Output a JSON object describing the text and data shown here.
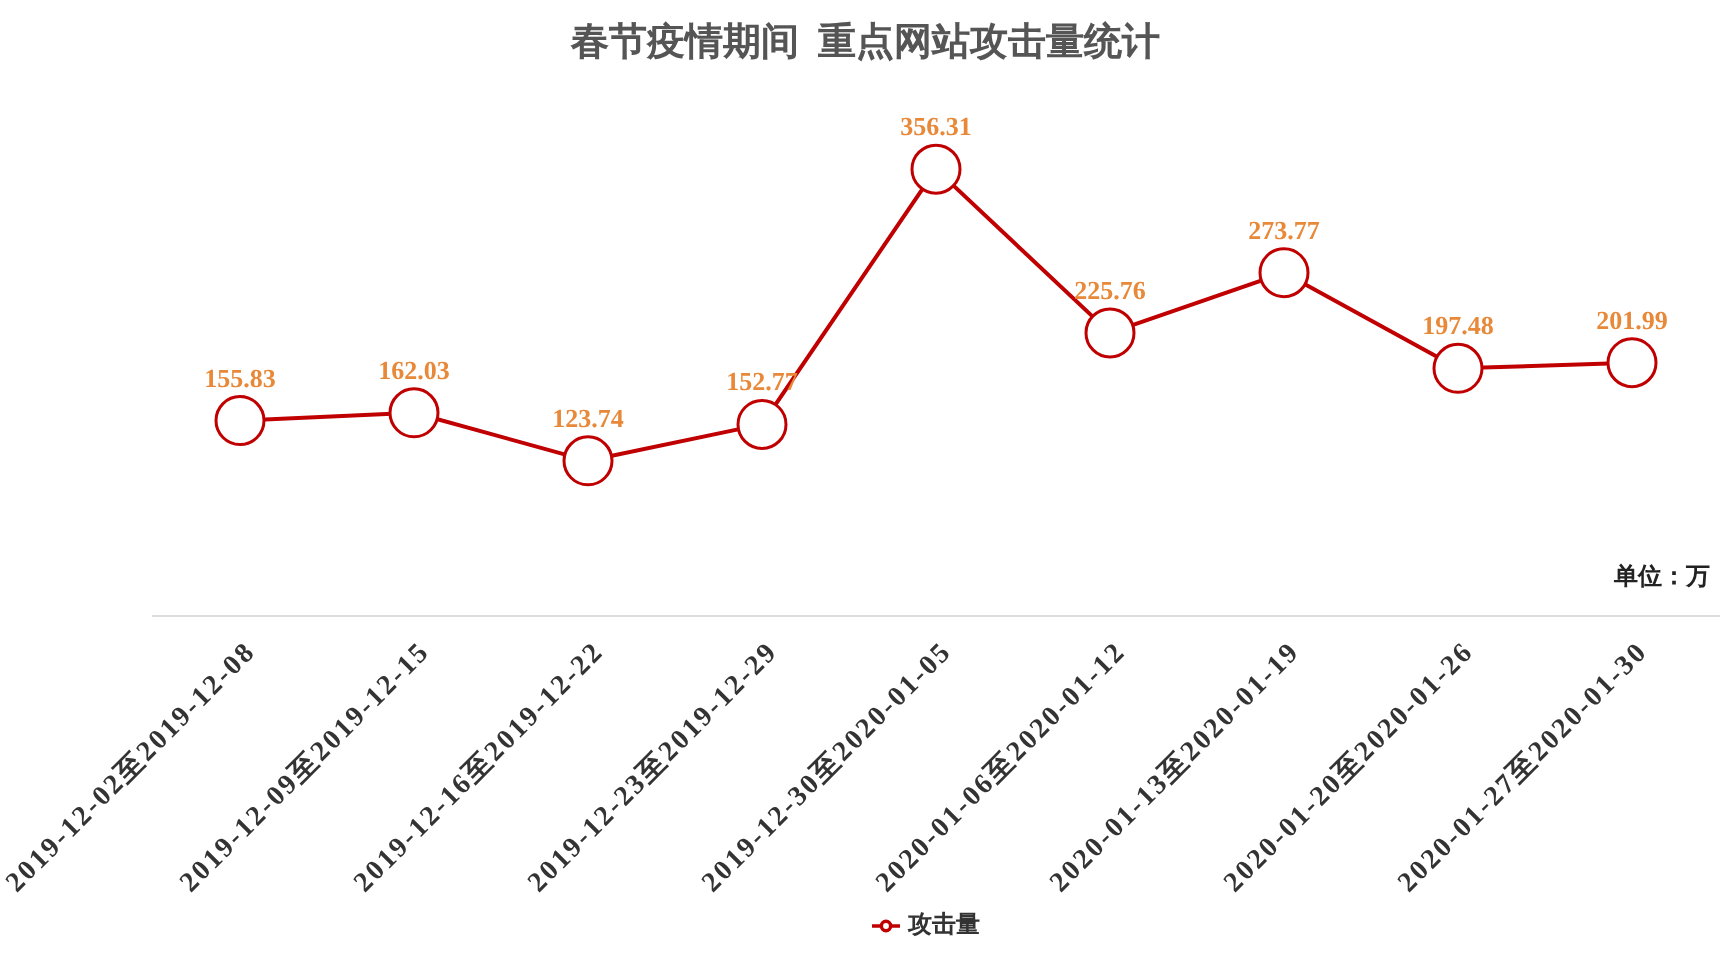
{
  "chart_data": {
    "type": "line",
    "title": "春节疫情期间  重点网站攻击量统计",
    "categories": [
      "2019-12-02至2019-12-08",
      "2019-12-09至2019-12-15",
      "2019-12-16至2019-12-22",
      "2019-12-23至2019-12-29",
      "2019-12-30至2020-01-05",
      "2020-01-06至2020-01-12",
      "2020-01-13至2020-01-19",
      "2020-01-20至2020-01-26",
      "2020-01-27至2020-01-30"
    ],
    "series": [
      {
        "name": "攻击量",
        "color": "#c00000",
        "values": [
          155.83,
          162.03,
          123.74,
          152.77,
          356.31,
          225.76,
          273.77,
          197.48,
          201.99
        ]
      }
    ],
    "annotations": [
      "单位：万"
    ],
    "data_labels": true,
    "legend": "bottom",
    "marker": "circle",
    "line_style": "solid",
    "grid": false
  }
}
